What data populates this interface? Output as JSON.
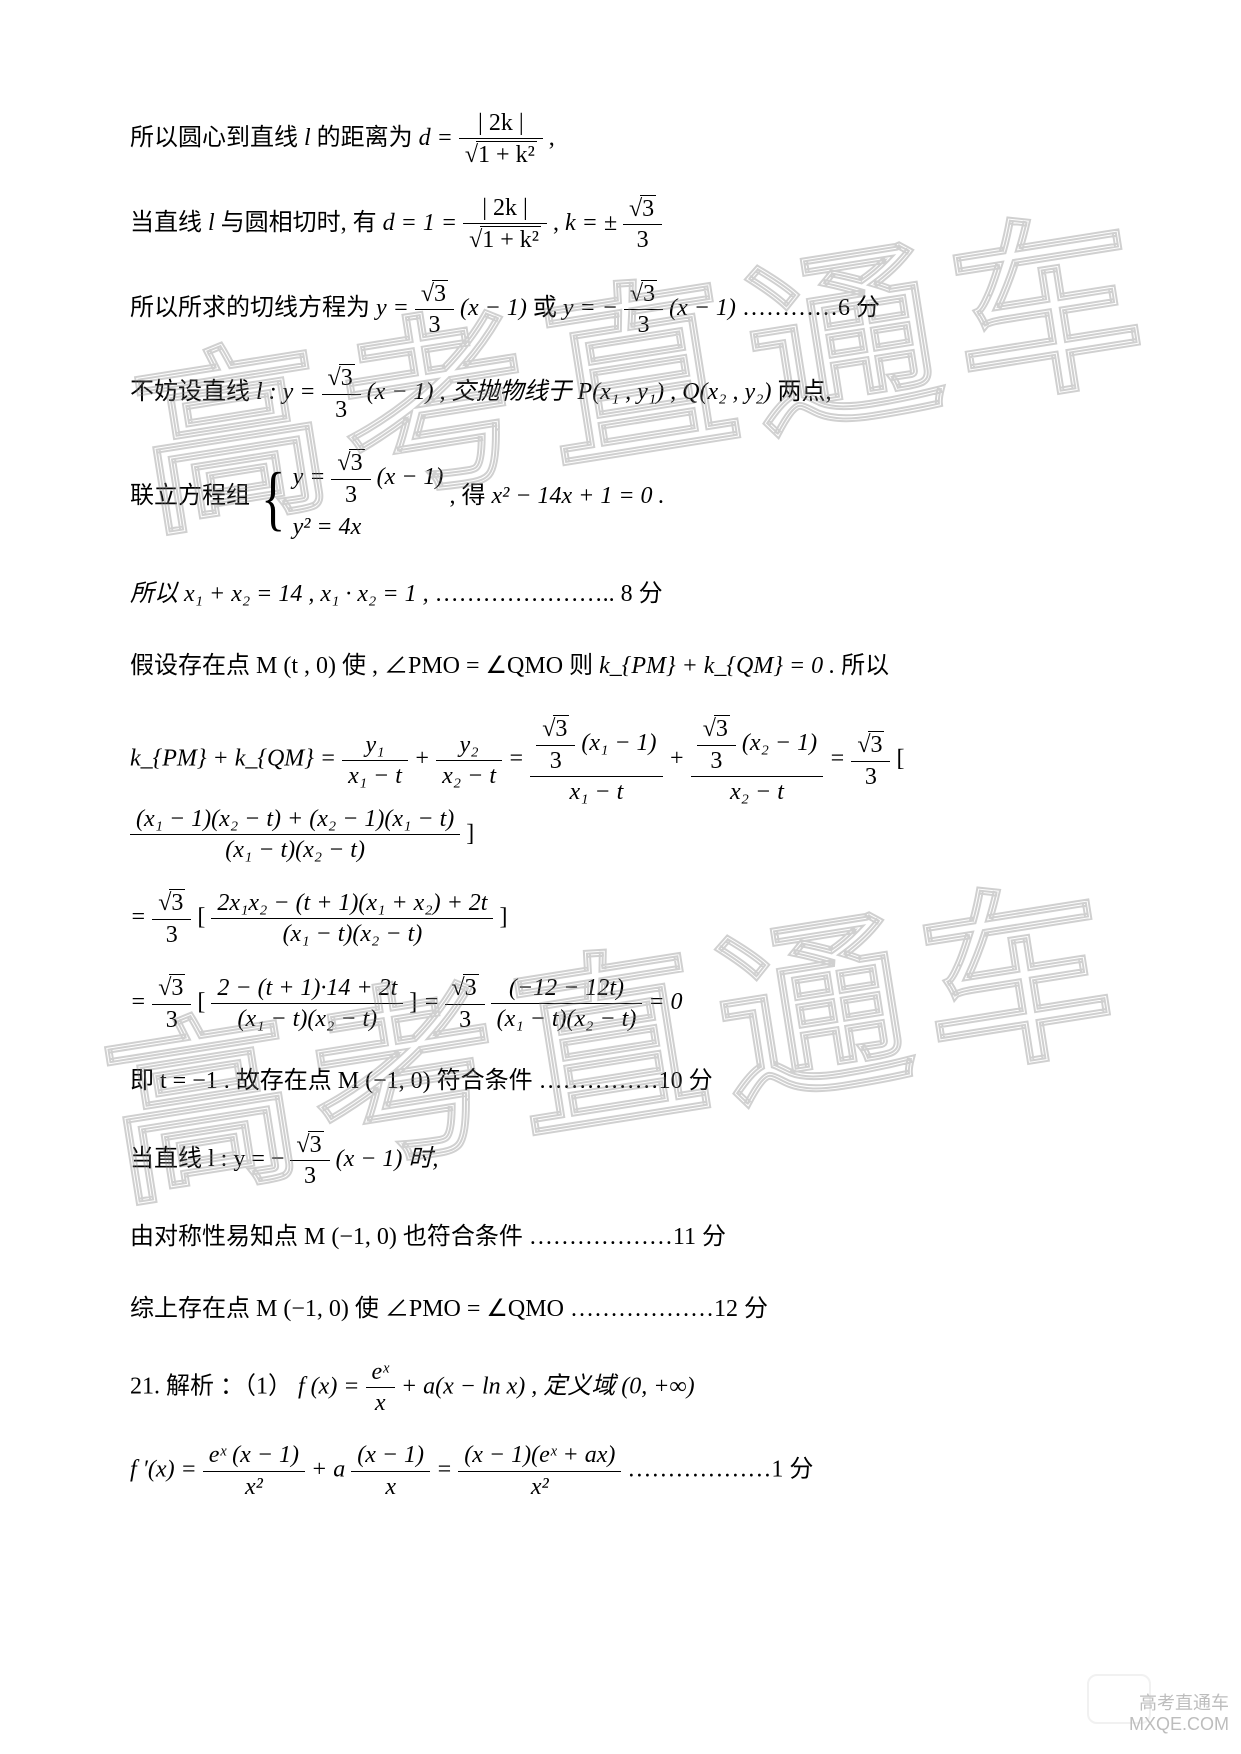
{
  "colors": {
    "text": "#000000",
    "background": "#ffffff",
    "watermark_stroke": "rgba(120,120,120,0.35)",
    "corner_text": "#bdbdbd"
  },
  "typography": {
    "body_font": "SimSun / STSong, serif",
    "math_font": "Times New Roman, serif",
    "body_size_pt": 18,
    "watermark_font": "SimHei / Microsoft YaHei, sans-serif"
  },
  "watermark": {
    "text": "高考直通车",
    "rotation_deg": -9,
    "corner_line1": "高考直通车",
    "corner_line2": "MXQE.COM"
  },
  "annotations": {
    "score6": "…………6 分",
    "score8": "………………….. 8 分",
    "score10": "……………10 分",
    "score11": "………………11 分",
    "score12": "………………12 分",
    "score1": "………………1 分"
  },
  "lines": {
    "l01_pre": "所以圆心到直线 ",
    "l01_l": "l",
    "l01_mid": " 的距离为 ",
    "l01_eq_pre": "d =",
    "l01_num": "| 2k |",
    "l01_den_rad": "1 + k²",
    "l01_tail": " ,",
    "l02_pre": "当直线",
    "l02_l": "l",
    "l02_mid": "与圆相切时, 有 ",
    "l02_eqA": "d = 1 =",
    "l02_numA": "| 2k |",
    "l02_denA_rad": "1 + k²",
    "l02_comma": " ,  ",
    "l02_eqB_pre": "k = ±",
    "l02_eqB_num_rad": "3",
    "l02_eqB_den": "3",
    "l03_pre": "所以所求的切线方程为 ",
    "l03_eqA_pre": "y =",
    "l03_eqA_num_rad": "3",
    "l03_eqA_den": "3",
    "l03_eqA_tail": "(x − 1)",
    "l03_or": " 或 ",
    "l03_eqB_pre": "y = −",
    "l03_eqB_num_rad": "3",
    "l03_eqB_den": "3",
    "l03_eqB_tail": "(x − 1)",
    "l04_pre": "不妨设直线 ",
    "l04_l": "l : y =",
    "l04_num_rad": "3",
    "l04_den": "3",
    "l04_tail": "(x − 1) , 交抛物线于 ",
    "l04_pts": "P(x₁ , y₁) , Q(x₂ , y₂)",
    "l04_end": " 两点,",
    "l05_pre": "联立方程组 ",
    "l05_row1_pre": "y =",
    "l05_row1_num_rad": "3",
    "l05_row1_den": "3",
    "l05_row1_tail": "(x − 1)",
    "l05_row2": "y² = 4x",
    "l05_aftr": " , 得 ",
    "l05_poly": "x² − 14x + 1 = 0 .",
    "l06": "所以 x₁ + x₂ = 14 ,  x₁ · x₂ = 1 , ",
    "l07a": "假设存在点 M (t , 0) 使 , ∠PMO = ∠QMO    则 ",
    "l07b": "k_{PM} + k_{QM} = 0 .",
    "l07c": "  所以",
    "l08_head": "k_{PM} + k_{QM} =",
    "l08_f1_num": "y₁",
    "l08_f1_den": "x₁ − t",
    "l08_plus": " + ",
    "l08_f2_num": "y₂",
    "l08_f2_den": "x₂ − t",
    "l08_eq": " = ",
    "l08_f3_num_coef_rad": "3",
    "l08_f3_num_coef_den": "3",
    "l08_f3_num_tail": "(x₁ − 1)",
    "l08_f3_den": "x₁ − t",
    "l08_f4_num_tail": "(x₂ − 1)",
    "l08_f4_den": "x₂ − t",
    "l08_big_pre_rad": "3",
    "l08_big_pre_den": "3",
    "l08_big_num": "(x₁ − 1)(x₂ − t) + (x₂ − 1)(x₁ − t)",
    "l08_big_den": "(x₁ − t)(x₂ − t)",
    "l09_pre_eq": "= ",
    "l09_coef_rad": "3",
    "l09_coef_den": "3",
    "l09_num": "2x₁x₂ − (t + 1)(x₁ + x₂) + 2t",
    "l09_den": "(x₁ − t)(x₂ − t)",
    "l10_pre_eq": "= ",
    "l10_coef_rad": "3",
    "l10_coef_den": "3",
    "l10_numA": "2 − (t + 1)·14 + 2t",
    "l10_denA": "(x₁ − t)(x₂ − t)",
    "l10_eq2": " = ",
    "l10_coef2_rad": "3",
    "l10_coef2_den": "3",
    "l10_numB": "(−12 − 12t)",
    "l10_denB": "(x₁ − t)(x₂ − t)",
    "l10_tail": " = 0",
    "l11": "即 t = −1 . 故存在点 M (−1, 0) 符合条件",
    "l12_pre": "当直线 l : y = −",
    "l12_num_rad": "3",
    "l12_den": "3",
    "l12_tail": "(x − 1) 时,",
    "l13": "由对称性易知点 M (−1, 0) 也符合条件",
    "l14": "综上存在点 M (−1, 0) 使 ∠PMO = ∠QMO ",
    "l15_pre": "21. 解析 ：（1） ",
    "l15_fx": "f (x) = ",
    "l15_num": "eˣ",
    "l15_den": "x",
    "l15_mid": " + a(x − ln x) , 定义域 (0, +∞)",
    "l16_pre": "f ′(x) = ",
    "l16_numA": "eˣ (x − 1)",
    "l16_denA": "x²",
    "l16_plus": " + a",
    "l16_numB": "(x − 1)",
    "l16_denB": "x",
    "l16_eq": " = ",
    "l16_numC": "(x − 1)(eˣ + ax)",
    "l16_denC": "x²"
  }
}
